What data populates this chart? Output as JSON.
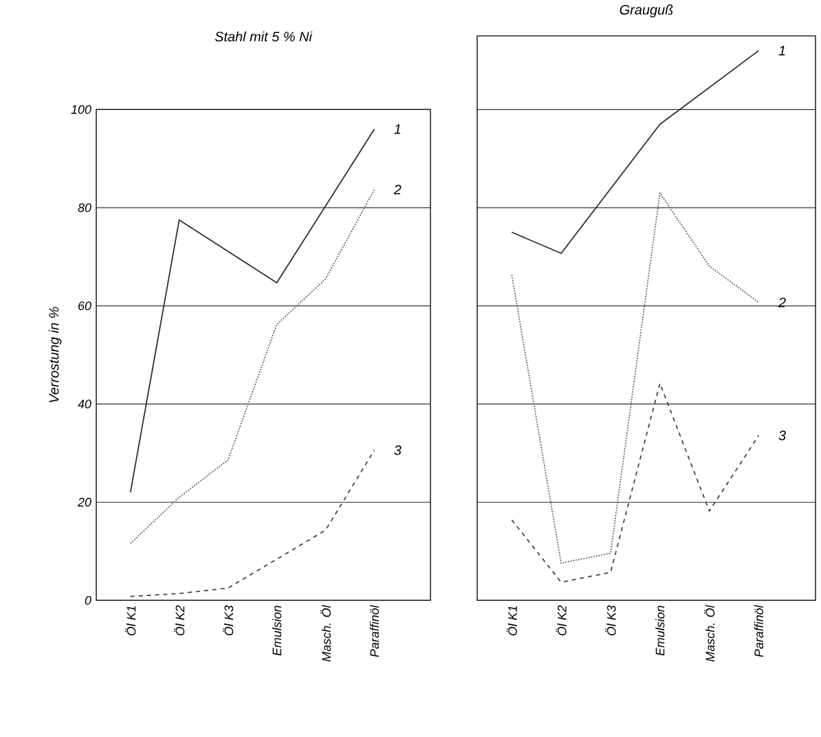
{
  "chart_data": [
    {
      "type": "line",
      "title": "Stahl mit 5 % Ni",
      "ylabel": "Verrostung in %",
      "categories": [
        "Öl K1",
        "Öl K2",
        "Öl K3",
        "Emulsion",
        "Masch. Öl",
        "Paraffinöl"
      ],
      "ylim": [
        0,
        100
      ],
      "yticks": [
        0,
        20,
        40,
        60,
        80,
        100
      ],
      "grid": "y",
      "legend": "right",
      "series": [
        {
          "name": "1",
          "color": "#2e2e2e",
          "line_style": "solid",
          "values": [
            22,
            77.5,
            null,
            64.7,
            null,
            96
          ]
        },
        {
          "name": "2",
          "color": "#5a5a5a",
          "line_style": "dotted",
          "values": [
            11.6,
            21,
            28.6,
            56.2,
            65.5,
            83.7
          ]
        },
        {
          "name": "3",
          "color": "#444444",
          "line_style": "dashed",
          "values": [
            0.8,
            1.4,
            2.5,
            null,
            14.3,
            30.6
          ]
        }
      ]
    },
    {
      "type": "line",
      "title": "Grauguß",
      "categories": [
        "Öl K1",
        "Öl K2",
        "Öl K3",
        "Emulsion",
        "Masch. Öl",
        "Paraffinöl"
      ],
      "ylim": [
        0,
        115
      ],
      "yticks": [
        0,
        20,
        40,
        60,
        80,
        100
      ],
      "grid": "y",
      "tick_labels": "x",
      "legend": "right",
      "series": [
        {
          "name": "1",
          "color": "#2e2e2e",
          "line_style": "solid",
          "values": [
            75,
            70.7,
            null,
            97,
            null,
            112
          ]
        },
        {
          "name": "2",
          "color": "#5a5a5a",
          "line_style": "dotted",
          "values": [
            66.3,
            7.6,
            9.6,
            83,
            68.1,
            60.7
          ]
        },
        {
          "name": "3",
          "color": "#444444",
          "line_style": "dashed",
          "values": [
            16.4,
            3.7,
            5.7,
            44.2,
            18.2,
            33.6
          ]
        }
      ]
    }
  ]
}
